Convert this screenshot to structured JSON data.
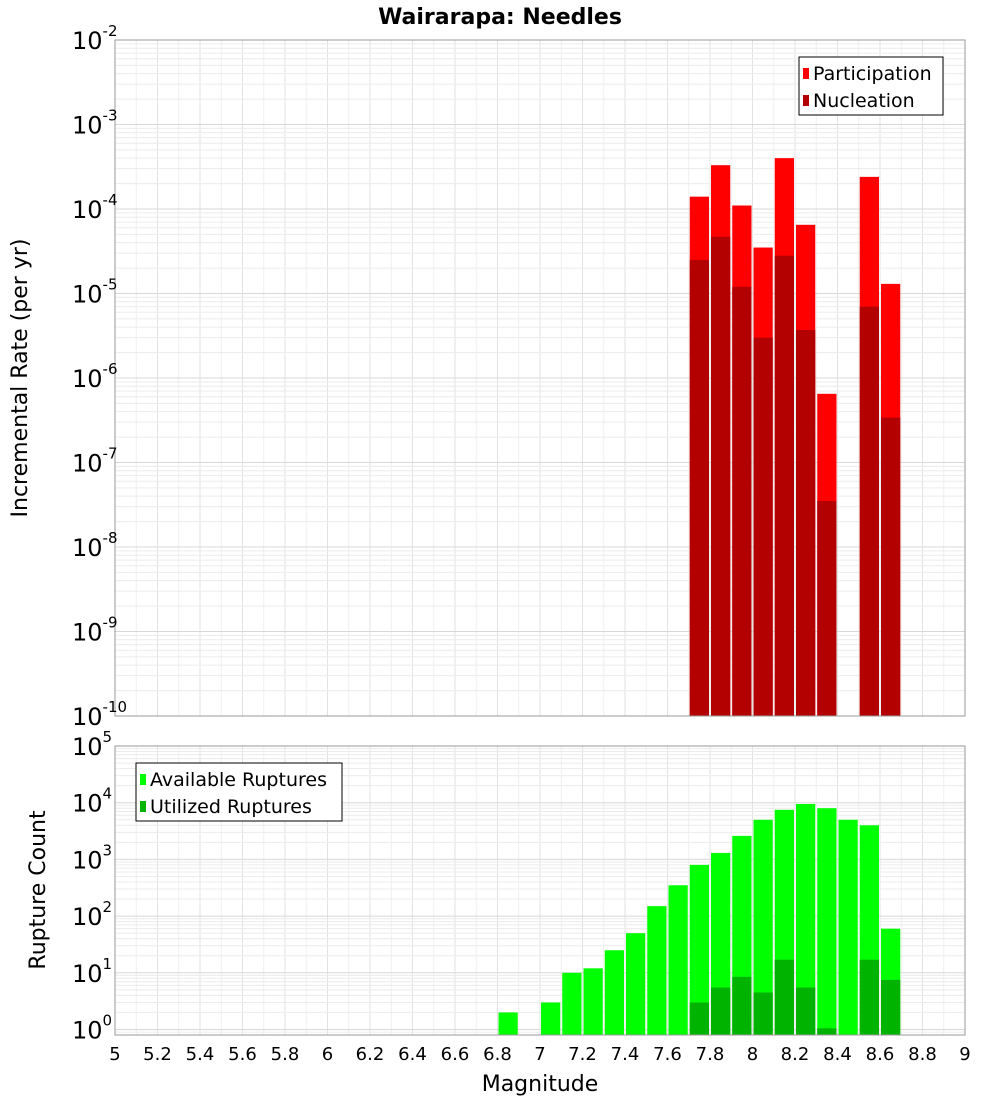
{
  "title": "Wairarapa: Needles",
  "xlabel": "Magnitude",
  "chart_data": [
    {
      "type": "bar",
      "ylabel": "Incremental Rate (per yr)",
      "yscale": "log",
      "ylim": [
        1e-10,
        0.01
      ],
      "xlim": [
        5,
        9
      ],
      "bin_width": 0.1,
      "grid": true,
      "legend": "top-right",
      "series": [
        {
          "name": "Participation",
          "color": "#ff0000",
          "points": [
            {
              "x": 7.75,
              "y": 0.00014
            },
            {
              "x": 7.85,
              "y": 0.00033
            },
            {
              "x": 7.95,
              "y": 0.00011
            },
            {
              "x": 8.05,
              "y": 3.5e-05
            },
            {
              "x": 8.15,
              "y": 0.0004
            },
            {
              "x": 8.25,
              "y": 6.5e-05
            },
            {
              "x": 8.35,
              "y": 6.5e-07
            },
            {
              "x": 8.55,
              "y": 0.00024
            },
            {
              "x": 8.65,
              "y": 1.3e-05
            }
          ]
        },
        {
          "name": "Nucleation",
          "color": "#b30000",
          "points": [
            {
              "x": 7.75,
              "y": 2.5e-05
            },
            {
              "x": 7.85,
              "y": 4.7e-05
            },
            {
              "x": 7.95,
              "y": 1.2e-05
            },
            {
              "x": 8.05,
              "y": 3e-06
            },
            {
              "x": 8.15,
              "y": 2.8e-05
            },
            {
              "x": 8.25,
              "y": 3.7e-06
            },
            {
              "x": 8.35,
              "y": 3.5e-08
            },
            {
              "x": 8.55,
              "y": 7e-06
            },
            {
              "x": 8.65,
              "y": 3.4e-07
            }
          ]
        }
      ]
    },
    {
      "type": "bar",
      "ylabel": "Rupture Count",
      "yscale": "log",
      "ylim": [
        0.8,
        100000.0
      ],
      "xlim": [
        5,
        9
      ],
      "bin_width": 0.1,
      "grid": true,
      "legend": "top-left",
      "series": [
        {
          "name": "Available Ruptures",
          "color": "#00ff00",
          "points": [
            {
              "x": 6.85,
              "y": 2
            },
            {
              "x": 7.05,
              "y": 3
            },
            {
              "x": 7.15,
              "y": 10
            },
            {
              "x": 7.25,
              "y": 12
            },
            {
              "x": 7.35,
              "y": 25
            },
            {
              "x": 7.45,
              "y": 50
            },
            {
              "x": 7.55,
              "y": 150
            },
            {
              "x": 7.65,
              "y": 350
            },
            {
              "x": 7.75,
              "y": 800
            },
            {
              "x": 7.85,
              "y": 1300
            },
            {
              "x": 7.95,
              "y": 2600
            },
            {
              "x": 8.05,
              "y": 5000
            },
            {
              "x": 8.15,
              "y": 7500
            },
            {
              "x": 8.25,
              "y": 9500
            },
            {
              "x": 8.35,
              "y": 8000
            },
            {
              "x": 8.45,
              "y": 5000
            },
            {
              "x": 8.55,
              "y": 4000
            },
            {
              "x": 8.65,
              "y": 60
            }
          ]
        },
        {
          "name": "Utilized Ruptures",
          "color": "#00b300",
          "points": [
            {
              "x": 7.75,
              "y": 3
            },
            {
              "x": 7.85,
              "y": 5.5
            },
            {
              "x": 7.95,
              "y": 8.5
            },
            {
              "x": 8.05,
              "y": 4.5
            },
            {
              "x": 8.15,
              "y": 17
            },
            {
              "x": 8.25,
              "y": 5.5
            },
            {
              "x": 8.35,
              "y": 1.05
            },
            {
              "x": 8.55,
              "y": 17
            },
            {
              "x": 8.65,
              "y": 7.5
            }
          ]
        }
      ]
    }
  ],
  "x_ticks": [
    "5",
    "5.2",
    "5.4",
    "5.6",
    "5.8",
    "6",
    "6.2",
    "6.4",
    "6.6",
    "6.8",
    "7",
    "7.2",
    "7.4",
    "7.6",
    "7.8",
    "8",
    "8.2",
    "8.4",
    "8.6",
    "8.8",
    "9"
  ],
  "top_y_ticks": [
    {
      "base": "10",
      "exp": "-10",
      "value": 1e-10
    },
    {
      "base": "10",
      "exp": "-9",
      "value": 1e-09
    },
    {
      "base": "10",
      "exp": "-8",
      "value": 1e-08
    },
    {
      "base": "10",
      "exp": "-7",
      "value": 1e-07
    },
    {
      "base": "10",
      "exp": "-6",
      "value": 1e-06
    },
    {
      "base": "10",
      "exp": "-5",
      "value": 1e-05
    },
    {
      "base": "10",
      "exp": "-4",
      "value": 0.0001
    },
    {
      "base": "10",
      "exp": "-3",
      "value": 0.001
    },
    {
      "base": "10",
      "exp": "-2",
      "value": 0.01
    }
  ],
  "bottom_y_ticks": [
    {
      "base": "10",
      "exp": "0",
      "value": 1
    },
    {
      "base": "10",
      "exp": "1",
      "value": 10
    },
    {
      "base": "10",
      "exp": "2",
      "value": 100
    },
    {
      "base": "10",
      "exp": "3",
      "value": 1000
    },
    {
      "base": "10",
      "exp": "4",
      "value": 10000
    },
    {
      "base": "10",
      "exp": "5",
      "value": 100000
    }
  ]
}
